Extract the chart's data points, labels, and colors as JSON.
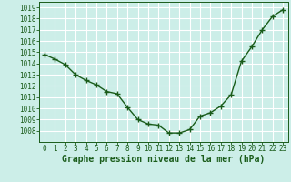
{
  "x": [
    0,
    1,
    2,
    3,
    4,
    5,
    6,
    7,
    8,
    9,
    10,
    11,
    12,
    13,
    14,
    15,
    16,
    17,
    18,
    19,
    20,
    21,
    22,
    23
  ],
  "y": [
    1014.8,
    1014.4,
    1013.9,
    1013.0,
    1012.5,
    1012.1,
    1011.5,
    1011.3,
    1010.1,
    1009.0,
    1008.6,
    1008.5,
    1007.8,
    1007.8,
    1008.1,
    1009.3,
    1009.6,
    1010.2,
    1011.2,
    1014.2,
    1015.5,
    1017.0,
    1018.2,
    1018.8
  ],
  "ylim": [
    1007,
    1019.5
  ],
  "yticks": [
    1008,
    1009,
    1010,
    1011,
    1012,
    1013,
    1014,
    1015,
    1016,
    1017,
    1018,
    1019
  ],
  "xlim": [
    -0.5,
    23.5
  ],
  "xticks": [
    0,
    1,
    2,
    3,
    4,
    5,
    6,
    7,
    8,
    9,
    10,
    11,
    12,
    13,
    14,
    15,
    16,
    17,
    18,
    19,
    20,
    21,
    22,
    23
  ],
  "line_color": "#1a5c1a",
  "marker": "+",
  "marker_size": 4,
  "line_width": 1.0,
  "bg_color": "#cceee8",
  "grid_color": "#ffffff",
  "xlabel": "Graphe pression niveau de la mer (hPa)",
  "xlabel_color": "#1a5c1a",
  "tick_color": "#1a5c1a",
  "tick_fontsize": 5.5,
  "xlabel_fontsize": 7.0
}
